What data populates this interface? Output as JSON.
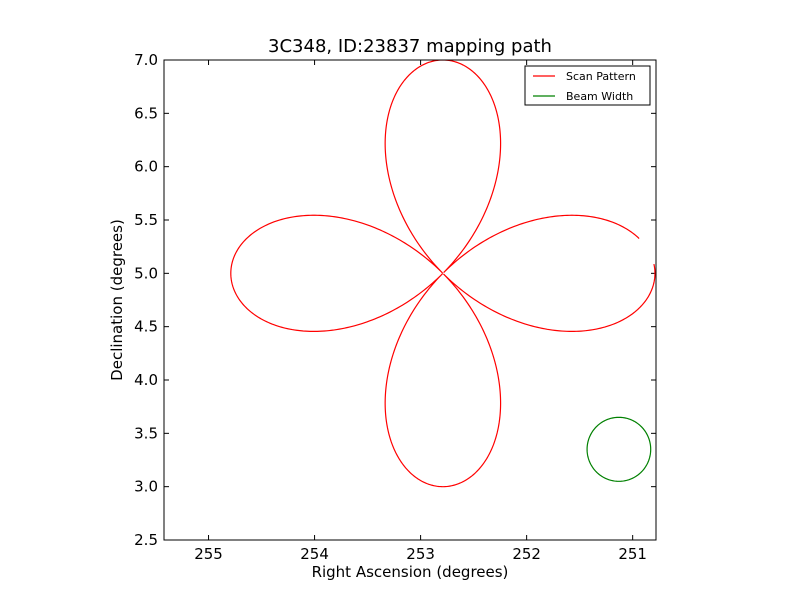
{
  "chart_data": {
    "type": "line",
    "title": "3C348, ID:23837 mapping path",
    "xlabel": "Right Ascension (degrees)",
    "ylabel": "Declination (degrees)",
    "xlim": [
      255.42,
      250.78
    ],
    "ylim": [
      2.5,
      7.0
    ],
    "xticks": [
      255,
      254,
      253,
      252,
      251
    ],
    "xtick_labels": [
      "255",
      "254",
      "253",
      "252",
      "251"
    ],
    "yticks": [
      2.5,
      3.0,
      3.5,
      4.0,
      4.5,
      5.0,
      5.5,
      6.0,
      6.5,
      7.0
    ],
    "ytick_labels": [
      "2.5",
      "3.0",
      "3.5",
      "4.0",
      "4.5",
      "5.0",
      "5.5",
      "6.0",
      "6.5",
      "7.0"
    ],
    "grid": false,
    "legend_position": "top-right",
    "series": [
      {
        "name": "Scan Pattern",
        "color": "#ff0000",
        "kind": "rose-curve",
        "center": [
          252.79,
          5.0
        ],
        "radius": 2.0,
        "petals": 4,
        "theta_start_deg": 177.5,
        "theta_end_deg": 530
      },
      {
        "name": "Beam Width",
        "color": "#008000",
        "kind": "circle",
        "center": [
          251.13,
          3.35
        ],
        "radius": 0.3
      }
    ],
    "legend": [
      "Scan Pattern",
      "Beam Width"
    ]
  }
}
